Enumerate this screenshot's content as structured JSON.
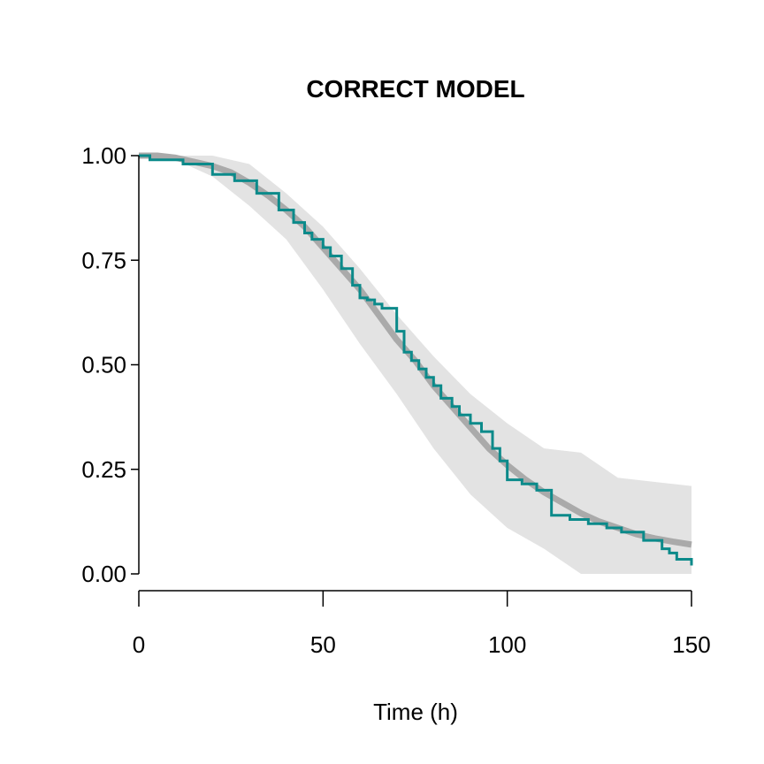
{
  "chart_data": {
    "type": "line",
    "title": "CORRECT MODEL",
    "xlabel": "Time (h)",
    "ylabel": "",
    "xlim": [
      0,
      150
    ],
    "ylim": [
      0,
      1
    ],
    "x_ticks": [
      0,
      50,
      100,
      150
    ],
    "y_ticks": [
      0,
      0.25,
      0.5,
      0.75,
      1
    ],
    "x_tick_labels": [
      "0",
      "50",
      "100",
      "150"
    ],
    "y_tick_labels": [
      "0.00",
      "0.25",
      "0.50",
      "0.75",
      "1.00"
    ],
    "grid": false,
    "colors": {
      "band": "#e3e3e3",
      "model": "#aaaaaa",
      "observed": "#0b8a8a"
    },
    "series": [
      {
        "role": "prediction-interval",
        "x": [
          0,
          10,
          20,
          30,
          40,
          50,
          60,
          70,
          80,
          90,
          100,
          110,
          120,
          130,
          140,
          150
        ],
        "lower": [
          1.0,
          0.99,
          0.95,
          0.88,
          0.8,
          0.68,
          0.55,
          0.43,
          0.3,
          0.19,
          0.11,
          0.06,
          0.0,
          0.0,
          0.0,
          0.0
        ],
        "upper": [
          1.0,
          1.0,
          1.0,
          0.98,
          0.91,
          0.83,
          0.73,
          0.62,
          0.52,
          0.43,
          0.36,
          0.3,
          0.29,
          0.23,
          0.22,
          0.21
        ]
      },
      {
        "role": "model-prediction",
        "x": [
          0,
          5,
          10,
          15,
          20,
          25,
          30,
          35,
          40,
          45,
          50,
          55,
          60,
          65,
          70,
          75,
          80,
          85,
          90,
          95,
          100,
          105,
          110,
          115,
          120,
          125,
          130,
          135,
          140,
          145,
          150
        ],
        "y": [
          1.0,
          1.0,
          0.995,
          0.985,
          0.975,
          0.96,
          0.935,
          0.905,
          0.87,
          0.83,
          0.78,
          0.73,
          0.68,
          0.62,
          0.56,
          0.51,
          0.45,
          0.4,
          0.35,
          0.3,
          0.26,
          0.225,
          0.195,
          0.17,
          0.145,
          0.125,
          0.11,
          0.095,
          0.085,
          0.077,
          0.07
        ]
      },
      {
        "role": "observed-km",
        "x": [
          0,
          3,
          12,
          20,
          26,
          32,
          38,
          42,
          45,
          47,
          50,
          52,
          55,
          58,
          60,
          62,
          64,
          66,
          70,
          72,
          74,
          76,
          78,
          80,
          82,
          85,
          87,
          90,
          93,
          96,
          98,
          100,
          104,
          108,
          112,
          117,
          122,
          127,
          131,
          137,
          142,
          144,
          146,
          150
        ],
        "y": [
          1.0,
          0.99,
          0.98,
          0.955,
          0.94,
          0.91,
          0.87,
          0.84,
          0.815,
          0.8,
          0.78,
          0.76,
          0.73,
          0.69,
          0.66,
          0.655,
          0.645,
          0.635,
          0.58,
          0.53,
          0.51,
          0.49,
          0.47,
          0.45,
          0.42,
          0.4,
          0.38,
          0.36,
          0.34,
          0.3,
          0.27,
          0.225,
          0.215,
          0.2,
          0.14,
          0.13,
          0.12,
          0.11,
          0.1,
          0.08,
          0.06,
          0.05,
          0.035,
          0.02
        ]
      }
    ]
  }
}
